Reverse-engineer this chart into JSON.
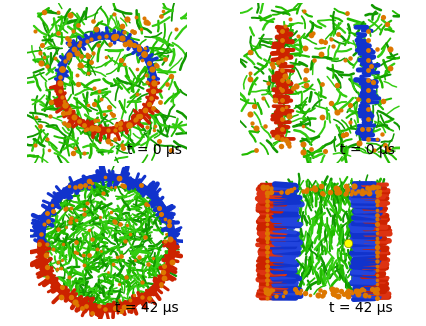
{
  "background_color": "#ffffff",
  "labels": [
    "t = 0 μs",
    "t = 0 μs",
    "t = 42 μs",
    "t = 42 μs"
  ],
  "colors": {
    "green": "#22bb00",
    "green2": "#33cc11",
    "green3": "#119900",
    "red": "#cc2200",
    "red2": "#dd3311",
    "blue": "#1133cc",
    "blue2": "#2244dd",
    "orange": "#dd7700",
    "orange2": "#ee8800",
    "yellow": "#ffff00",
    "white": "#ffffff"
  },
  "figsize": [
    4.27,
    3.26
  ],
  "dpi": 100,
  "font_size": 10
}
